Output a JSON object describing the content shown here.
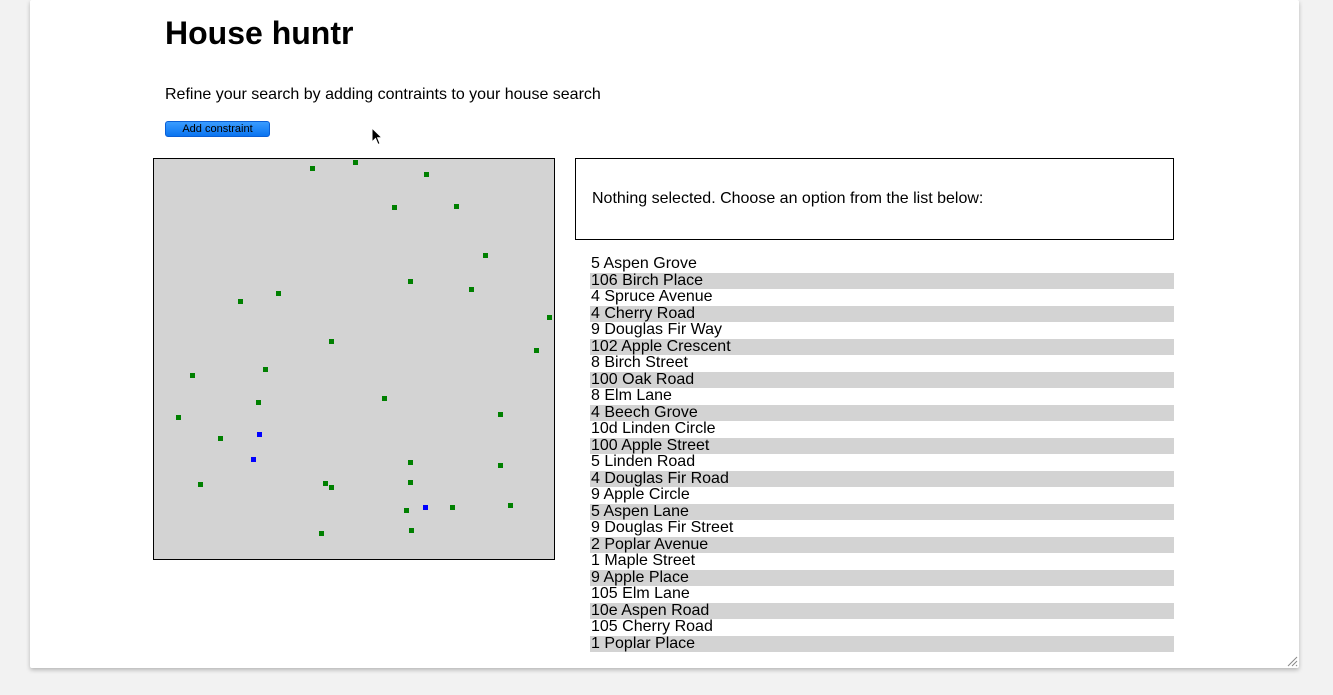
{
  "page": {
    "title": "House huntr",
    "subtitle": "Refine your search by adding contraints to your house search",
    "add_button_label": "Add constraint"
  },
  "details": {
    "text": "Nothing selected. Choose an option from the list below:"
  },
  "houses": [
    "5 Aspen Grove",
    "106 Birch Place",
    "4 Spruce Avenue",
    "4 Cherry Road",
    "9 Douglas Fir Way",
    "102 Apple Crescent",
    "8 Birch Street",
    "100 Oak Road",
    "8 Elm Lane",
    "4 Beech Grove",
    "10d Linden Circle",
    "100 Apple Street",
    "5 Linden Road",
    "4 Douglas Fir Road",
    "9 Apple Circle",
    "5 Aspen Lane",
    "9 Douglas Fir Street",
    "2 Poplar Avenue",
    "1 Maple Street",
    "9 Apple Place",
    "105 Elm Lane",
    "10e Aspen Road",
    "105 Cherry Road",
    "1 Poplar Place"
  ],
  "colors": {
    "map_background": "#d3d3d3",
    "house_marker": "#008000",
    "highlighted_marker": "#0000ff",
    "button": "#0a74f0"
  },
  "icons": {
    "cursor": "mouse-pointer-icon",
    "resize": "resize-grip-icon"
  }
}
